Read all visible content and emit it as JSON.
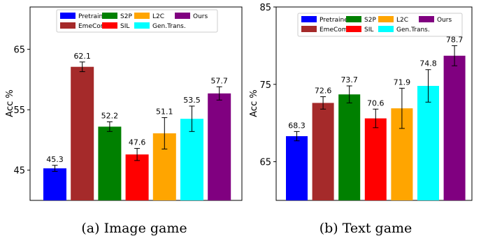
{
  "chart_data": [
    {
      "type": "bar",
      "caption": "(a) Image game",
      "ylabel": "Acc %",
      "ylim": [
        40,
        72
      ],
      "yticks": [
        45,
        55,
        65
      ],
      "categories": [
        "Pretrained",
        "EmeCom",
        "S2P",
        "SIL",
        "L2C",
        "Gen.Trans.",
        "Ours"
      ],
      "values": [
        45.3,
        62.1,
        52.2,
        47.6,
        51.1,
        53.5,
        57.7
      ],
      "value_labels": [
        "45.3",
        "62.1",
        "52.2",
        "47.6",
        "51.1",
        "53.5",
        "57.7"
      ],
      "errors": [
        0.5,
        0.8,
        0.8,
        1.0,
        2.6,
        2.1,
        1.1
      ],
      "colors": [
        "#0000ff",
        "#a52a2a",
        "#008000",
        "#ff0000",
        "#ffa500",
        "#00ffff",
        "#800080"
      ],
      "legend_position": "top"
    },
    {
      "type": "bar",
      "caption": "(b) Text game",
      "ylabel": "Acc %",
      "ylim": [
        60,
        85
      ],
      "yticks": [
        65,
        75,
        85
      ],
      "categories": [
        "Pretrained",
        "EmeCom",
        "S2P",
        "SIL",
        "L2C",
        "Gen.Trans.",
        "Ours"
      ],
      "values": [
        68.3,
        72.6,
        73.7,
        70.6,
        71.9,
        74.8,
        78.7
      ],
      "value_labels": [
        "68.3",
        "72.6",
        "73.7",
        "70.6",
        "71.9",
        "74.8",
        "78.7"
      ],
      "errors": [
        0.6,
        0.8,
        1.1,
        1.2,
        2.6,
        2.1,
        1.3
      ],
      "colors": [
        "#0000ff",
        "#a52a2a",
        "#008000",
        "#ff0000",
        "#ffa500",
        "#00ffff",
        "#800080"
      ],
      "legend_position": "top"
    }
  ]
}
